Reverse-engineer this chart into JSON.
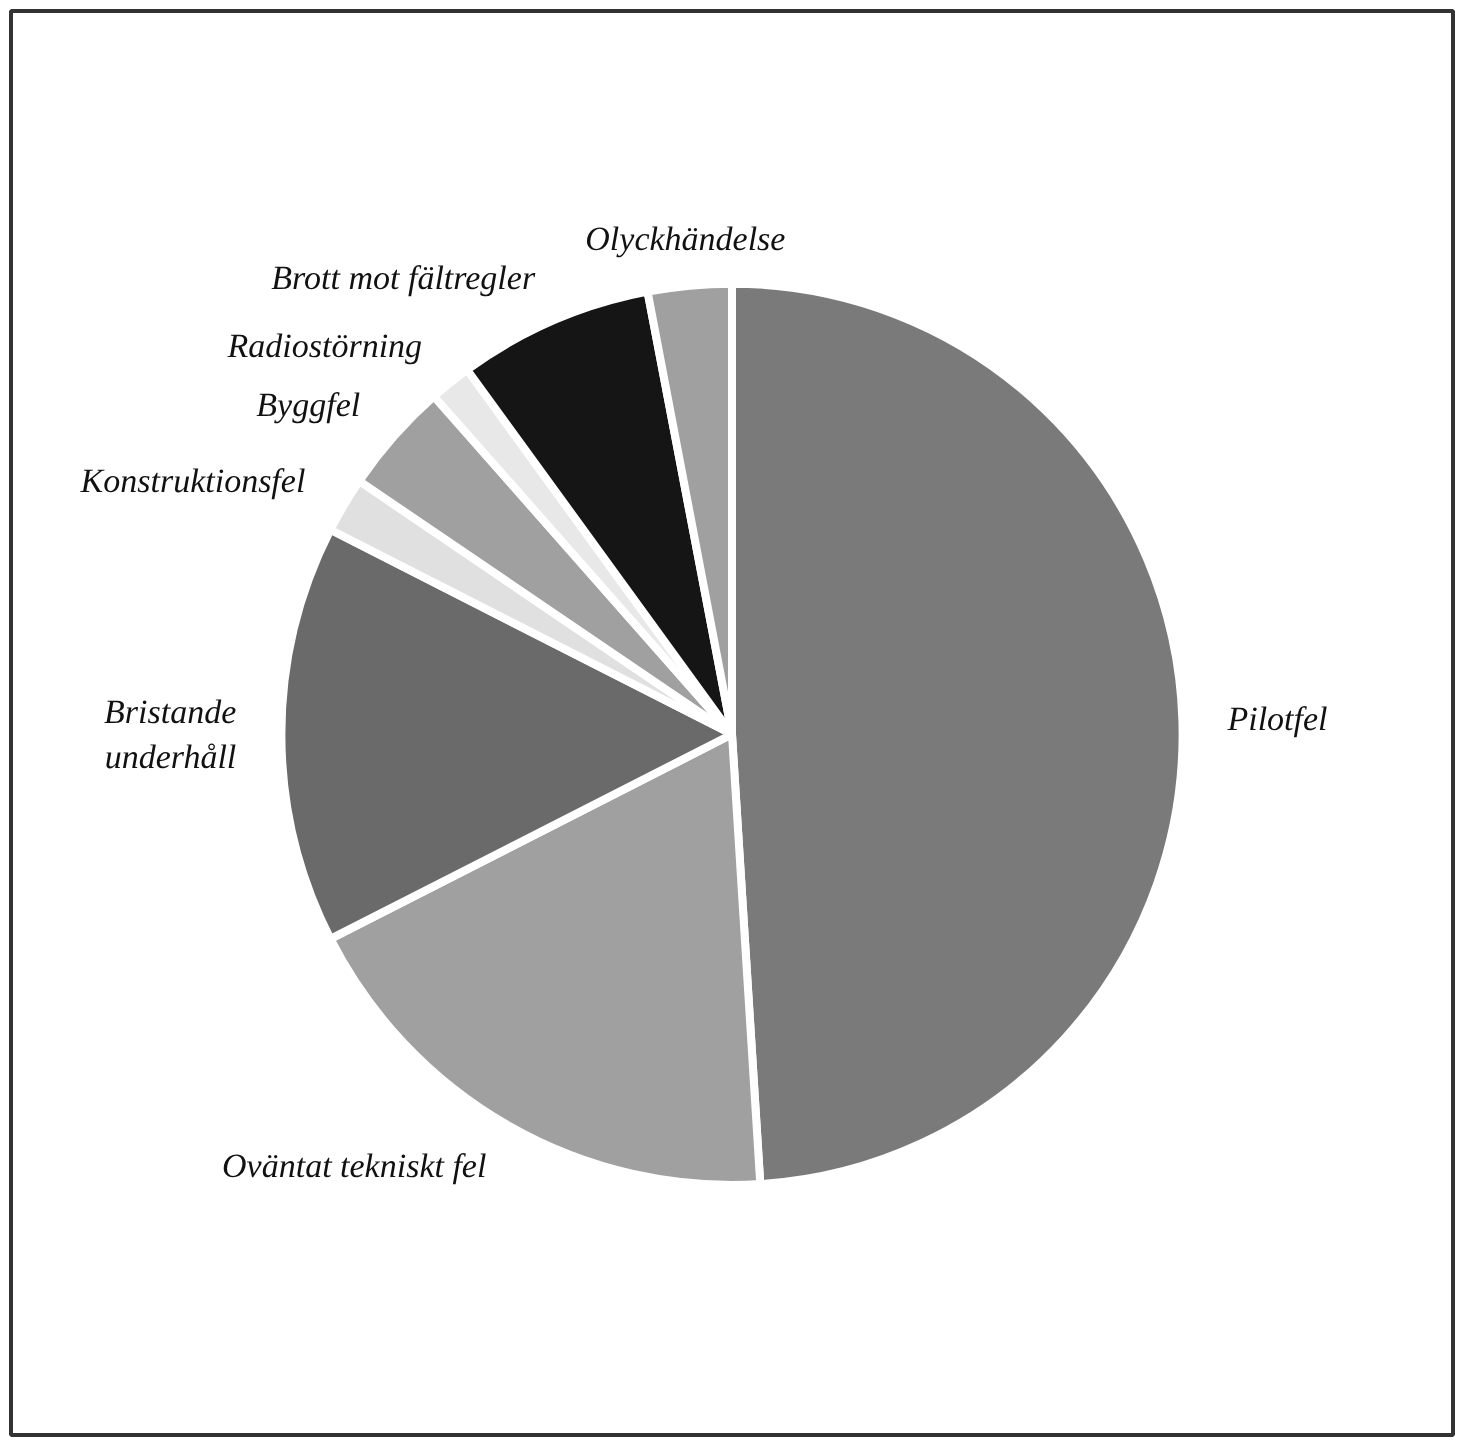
{
  "chart_data": {
    "type": "pie",
    "categories": [
      "Pilotfel",
      "Oväntat tekniskt fel",
      "Bristande\nunderhåll",
      "Konstruktionsfel",
      "Byggfel",
      "Radiostörning",
      "Brott mot fältregler",
      "Olyckhändelse"
    ],
    "values": [
      49,
      18.5,
      15,
      2,
      4,
      1.5,
      7,
      3
    ],
    "colors": [
      "#7a7a7a",
      "#a0a0a0",
      "#6a6a6a",
      "#e0e0e0",
      "#a0a0a0",
      "#e8e8e8",
      "#151515",
      "#a0a0a0"
    ]
  }
}
